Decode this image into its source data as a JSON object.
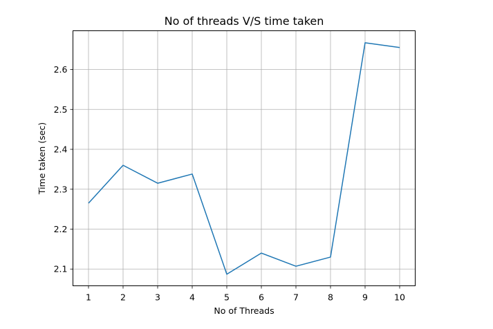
{
  "chart_data": {
    "type": "line",
    "title": "No of threads V/S time taken",
    "xlabel": "No of Threads",
    "ylabel": "Time taken (sec)",
    "x": [
      1,
      2,
      3,
      4,
      5,
      6,
      7,
      8,
      9,
      10
    ],
    "xticks": [
      "1",
      "2",
      "3",
      "4",
      "5",
      "6",
      "7",
      "8",
      "9",
      "10"
    ],
    "yticks": [
      "2.1",
      "2.2",
      "2.3",
      "2.4",
      "2.5",
      "2.6"
    ],
    "ytick_values": [
      2.1,
      2.2,
      2.3,
      2.4,
      2.5,
      2.6
    ],
    "series": [
      {
        "values": [
          2.265,
          2.36,
          2.315,
          2.338,
          2.087,
          2.14,
          2.107,
          2.13,
          2.667,
          2.655
        ],
        "color": "#1f77b4"
      }
    ],
    "xlim": [
      0.55,
      10.45
    ],
    "ylim": [
      2.058,
      2.697
    ],
    "grid": true
  }
}
